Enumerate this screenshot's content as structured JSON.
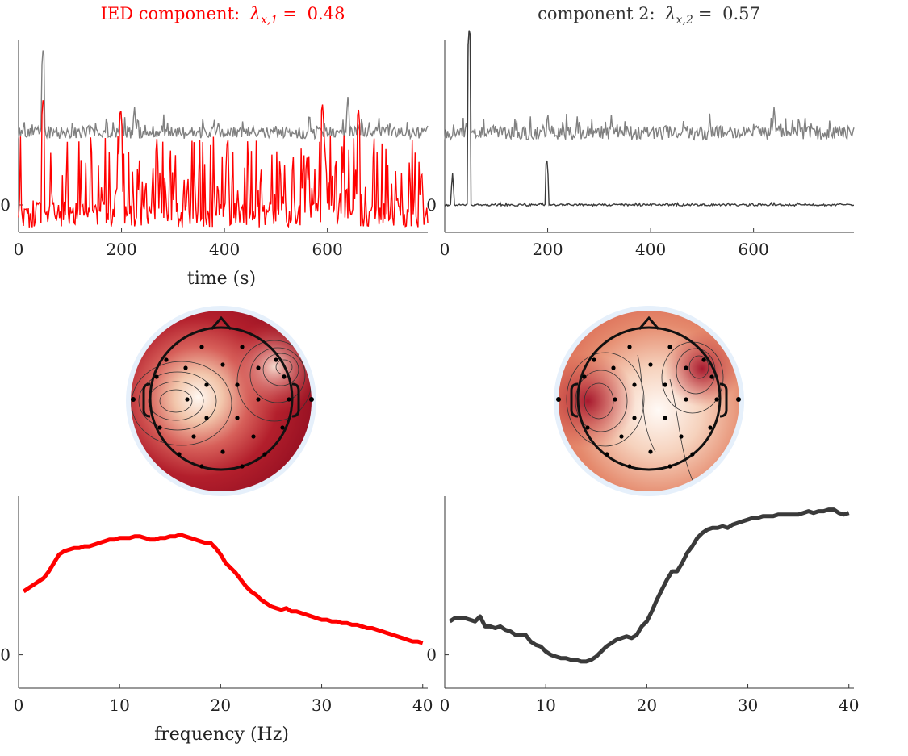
{
  "colors": {
    "ied": "#ff0000",
    "gray": "#808080",
    "dark": "#3a3a3a",
    "topo_edge": "#e6f0fb"
  },
  "panels": [
    {
      "title_prefix": "IED component:",
      "lambda_sub": "x,1",
      "lambda_value": "0.48",
      "title_color": "#ff0000"
    },
    {
      "title_prefix": "component 2:",
      "lambda_sub": "x,2",
      "lambda_value": "0.57",
      "title_color": "#333333"
    }
  ],
  "labels": {
    "time_xlabel": "time (s)",
    "freq_xlabel": "frequency (Hz)",
    "zero": "0"
  },
  "chart_data": [
    {
      "type": "line",
      "panel": "ied-time-course",
      "xlim": [
        0,
        795
      ],
      "xticks": [
        0,
        200,
        400,
        600
      ],
      "yticks": [
        0
      ],
      "xlabel": "time (s)",
      "series": [
        {
          "color": "gray",
          "y_base": 1.45,
          "noise": 0.12,
          "spikes": [
            [
              48,
              3.2
            ],
            [
              198,
              2.0
            ],
            [
              225,
              2.0
            ],
            [
              565,
              1.9
            ],
            [
              640,
              2.2
            ],
            [
              700,
              1.8
            ],
            [
              755,
              1.7
            ]
          ]
        },
        {
          "color": "red",
          "y_base": 0.0,
          "noise": 0.4,
          "spikes": [
            [
              48,
              2.2
            ],
            [
              198,
              2.0
            ],
            [
              590,
              2.1
            ],
            [
              660,
              2.0
            ]
          ]
        }
      ]
    },
    {
      "type": "line",
      "panel": "component2-time-course",
      "xlim": [
        0,
        795
      ],
      "xticks": [
        0,
        200,
        400,
        600
      ],
      "yticks": [
        0
      ],
      "series": [
        {
          "color": "gray",
          "y_base": 1.45,
          "noise": 0.14,
          "spikes": [
            [
              48,
              3.6
            ],
            [
              200,
              1.9
            ],
            [
              640,
              2.0
            ],
            [
              700,
              1.8
            ]
          ]
        },
        {
          "color": "dark",
          "y_base": 0.0,
          "noise": 0.02,
          "spikes": [
            [
              15,
              0.65
            ],
            [
              48,
              3.6
            ],
            [
              198,
              1.0
            ]
          ]
        }
      ]
    },
    {
      "type": "line",
      "panel": "ied-spectrum",
      "xlim": [
        0,
        40.5
      ],
      "xticks": [
        0,
        10,
        20,
        30,
        40
      ],
      "yticks": [
        0
      ],
      "xlabel": "frequency (Hz)",
      "x": [
        0.5,
        1,
        1.5,
        2,
        2.5,
        3,
        3.5,
        4,
        4.5,
        5,
        5.5,
        6,
        6.5,
        7,
        7.5,
        8,
        8.5,
        9,
        9.5,
        10,
        10.5,
        11,
        11.5,
        12,
        12.5,
        13,
        13.5,
        14,
        14.5,
        15,
        15.5,
        16,
        16.5,
        17,
        17.5,
        18,
        18.5,
        19,
        19.5,
        20,
        20.5,
        21,
        21.5,
        22,
        22.5,
        23,
        23.5,
        24,
        24.5,
        25,
        25.5,
        26,
        26.5,
        27,
        27.5,
        28,
        28.5,
        29,
        29.5,
        30,
        30.5,
        31,
        31.5,
        32,
        32.5,
        33,
        33.5,
        34,
        34.5,
        35,
        35.5,
        36,
        36.5,
        37,
        37.5,
        38,
        38.5,
        39,
        39.5,
        40
      ],
      "y": [
        0.38,
        0.4,
        0.42,
        0.44,
        0.46,
        0.5,
        0.55,
        0.6,
        0.62,
        0.63,
        0.64,
        0.64,
        0.65,
        0.65,
        0.66,
        0.67,
        0.68,
        0.69,
        0.69,
        0.7,
        0.7,
        0.7,
        0.71,
        0.71,
        0.7,
        0.69,
        0.69,
        0.7,
        0.7,
        0.71,
        0.71,
        0.72,
        0.71,
        0.7,
        0.69,
        0.68,
        0.67,
        0.67,
        0.64,
        0.6,
        0.55,
        0.52,
        0.49,
        0.45,
        0.41,
        0.38,
        0.36,
        0.33,
        0.31,
        0.29,
        0.28,
        0.27,
        0.28,
        0.26,
        0.26,
        0.25,
        0.24,
        0.23,
        0.22,
        0.21,
        0.21,
        0.2,
        0.2,
        0.19,
        0.19,
        0.18,
        0.18,
        0.17,
        0.16,
        0.16,
        0.15,
        0.14,
        0.13,
        0.12,
        0.11,
        0.1,
        0.09,
        0.08,
        0.08,
        0.07
      ]
    },
    {
      "type": "line",
      "panel": "component2-spectrum",
      "xlim": [
        0,
        40.5
      ],
      "xticks": [
        0,
        10,
        20,
        30,
        40
      ],
      "yticks": [
        0
      ],
      "x": [
        0.5,
        1,
        1.5,
        2,
        2.5,
        3,
        3.5,
        4,
        4.5,
        5,
        5.5,
        6,
        6.5,
        7,
        7.5,
        8,
        8.5,
        9,
        9.5,
        10,
        10.5,
        11,
        11.5,
        12,
        12.5,
        13,
        13.5,
        14,
        14.5,
        15,
        15.5,
        16,
        16.5,
        17,
        17.5,
        18,
        18.5,
        19,
        19.5,
        20,
        20.5,
        21,
        21.5,
        22,
        22.5,
        23,
        23.5,
        24,
        24.5,
        25,
        25.5,
        26,
        26.5,
        27,
        27.5,
        28,
        28.5,
        29,
        29.5,
        30,
        30.5,
        31,
        31.5,
        32,
        32.5,
        33,
        33.5,
        34,
        34.5,
        35,
        35.5,
        36,
        36.5,
        37,
        37.5,
        38,
        38.5,
        39,
        39.5,
        40
      ],
      "y": [
        0.2,
        0.22,
        0.22,
        0.22,
        0.21,
        0.2,
        0.23,
        0.17,
        0.17,
        0.16,
        0.17,
        0.15,
        0.14,
        0.12,
        0.12,
        0.12,
        0.08,
        0.06,
        0.05,
        0.02,
        0.0,
        -0.01,
        -0.02,
        -0.02,
        -0.03,
        -0.03,
        -0.04,
        -0.04,
        -0.03,
        -0.01,
        0.02,
        0.05,
        0.07,
        0.09,
        0.1,
        0.11,
        0.1,
        0.12,
        0.17,
        0.2,
        0.26,
        0.33,
        0.39,
        0.45,
        0.5,
        0.5,
        0.55,
        0.61,
        0.65,
        0.7,
        0.73,
        0.75,
        0.76,
        0.76,
        0.77,
        0.76,
        0.78,
        0.79,
        0.8,
        0.81,
        0.82,
        0.82,
        0.83,
        0.83,
        0.83,
        0.84,
        0.84,
        0.84,
        0.84,
        0.84,
        0.85,
        0.86,
        0.85,
        0.86,
        0.86,
        0.87,
        0.87,
        0.85,
        0.84,
        0.85
      ]
    }
  ]
}
